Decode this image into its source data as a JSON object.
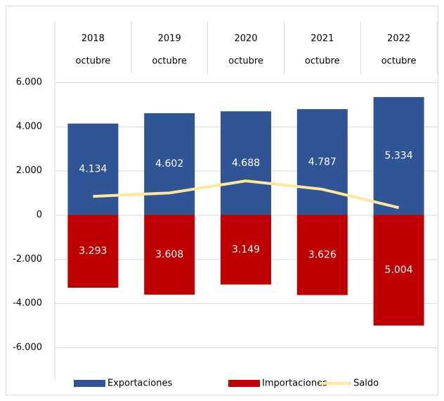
{
  "chart_data": {
    "type": "bar",
    "categories": [
      "2018",
      "2019",
      "2020",
      "2021",
      "2022"
    ],
    "category_sublabels": [
      "octubre",
      "octubre",
      "octubre",
      "octubre",
      "octubre"
    ],
    "series": [
      {
        "name": "Exportaciones",
        "color": "#2f5597",
        "type": "bar",
        "values": [
          4134,
          4602,
          4688,
          4787,
          5334
        ],
        "value_labels": [
          "4.134",
          "4.602",
          "4.688",
          "4.787",
          "5.334"
        ]
      },
      {
        "name": "Importaciones",
        "color": "#c00000",
        "type": "bar",
        "values": [
          -3293,
          -3608,
          -3149,
          -3626,
          -5004
        ],
        "value_labels": [
          "3.293",
          "3.608",
          "3.149",
          "3.626",
          "5.004"
        ]
      },
      {
        "name": "Saldo",
        "color": "#ffe699",
        "type": "line",
        "values": [
          841,
          994,
          1539,
          1161,
          330
        ]
      }
    ],
    "ylim": [
      -6000,
      6000
    ],
    "yticks": [
      {
        "value": -6000,
        "label": "-6.000"
      },
      {
        "value": -4000,
        "label": "-4.000"
      },
      {
        "value": -2000,
        "label": "-2.000"
      },
      0,
      {
        "value": 2000,
        "label": "2.000"
      },
      {
        "value": 4000,
        "label": "4.000"
      },
      {
        "value": 6000,
        "label": "6.000"
      }
    ],
    "grid": true,
    "legend": "bottom"
  }
}
